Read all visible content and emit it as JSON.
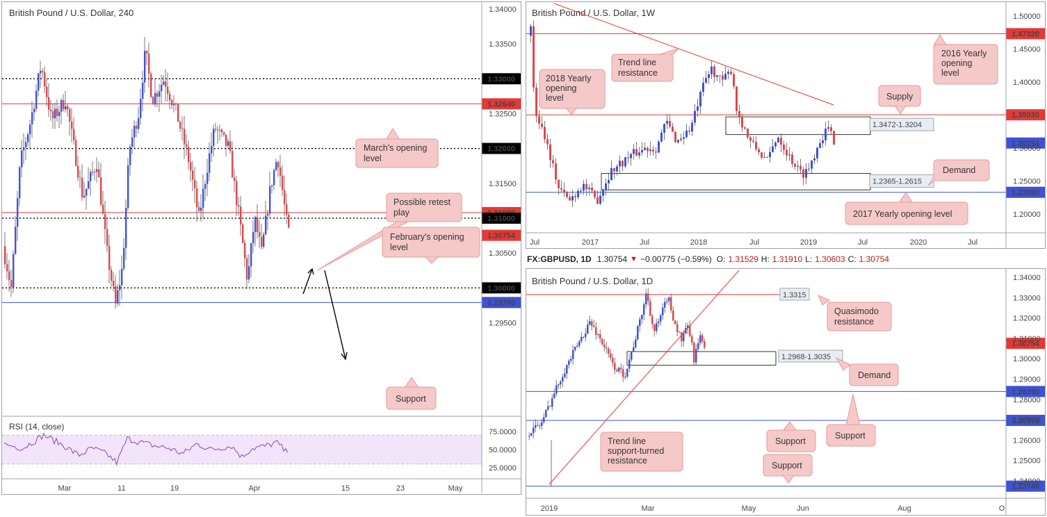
{
  "panels": {
    "h4": {
      "title": "British Pound / U.S. Dollar, 240",
      "rsi_label": "RSI (14, close)",
      "yaxis_ticks": [
        "1.34000",
        "1.33500",
        "1.32500",
        "1.31500",
        "1.30500",
        "1.29500"
      ],
      "rsi_ticks": [
        "75.0000",
        "50.0000",
        "25.0000"
      ],
      "xaxis_ticks": [
        "Mar",
        "11",
        "19",
        "Apr",
        "15",
        "23",
        "May"
      ],
      "levels": [
        {
          "label": "1.33000",
          "price": 1.33,
          "style": "dotted",
          "badge": "black"
        },
        {
          "label": "1.32640",
          "price": 1.3264,
          "style": "red",
          "badge": "red"
        },
        {
          "label": "1.32000",
          "price": 1.32,
          "style": "dotted",
          "badge": "black"
        },
        {
          "label": "1.31080",
          "price": 1.3108,
          "style": "red",
          "badge": "red"
        },
        {
          "label": "1.31000",
          "price": 1.31,
          "style": "dotted",
          "badge": "black"
        },
        {
          "label": "1.30754",
          "price": 1.30754,
          "style": "none",
          "badge": "red"
        },
        {
          "label": "1.30000",
          "price": 1.3,
          "style": "dotted",
          "badge": "black"
        },
        {
          "label": "1.29790",
          "price": 1.2979,
          "style": "blue",
          "badge": "blue"
        }
      ],
      "callouts": {
        "march": "March's opening level",
        "possible": "Possible retest play",
        "february": "February's opening level",
        "support": "Support"
      }
    },
    "weekly": {
      "title": "British Pound / U.S. Dollar, 1W",
      "yaxis_ticks": [
        "1.50000",
        "1.45000",
        "1.40000",
        "1.30000",
        "1.25000",
        "1.20000"
      ],
      "xaxis_ticks": [
        "Jul",
        "2017",
        "Jul",
        "2018",
        "Jul",
        "2019",
        "Jul",
        "2020",
        "Jul"
      ],
      "levels": [
        {
          "label": "1.47320",
          "style": "red",
          "badge": "red"
        },
        {
          "label": "1.35030",
          "style": "red",
          "badge": "red"
        },
        {
          "label": "1.30754",
          "style": "none",
          "badge": "blue"
        },
        {
          "label": "1.23290",
          "style": "blue",
          "badge": "blue"
        }
      ],
      "zones": {
        "supply": "1.3472-1.3204",
        "demand": "1.2365-1.2615"
      },
      "callouts": {
        "trend": "Trend line resistance",
        "y2018": "2018 Yearly opening level",
        "y2016": "2016 Yearly opening level",
        "supply": "Supply",
        "demand": "Demand",
        "y2017": "2017 Yearly opening level"
      }
    },
    "daily": {
      "header": {
        "symbol": "FX:GBPUSD, 1D",
        "last": "1.30754",
        "change": "−0.00775 (−0.59%)",
        "o_label": "O:",
        "o": "1.31529",
        "h_label": "H:",
        "h": "1.31910",
        "l_label": "L:",
        "l": "1.30603",
        "c_label": "C:",
        "c": "1.30754"
      },
      "title": "British Pound / U.S. Dollar, 1D",
      "yaxis_ticks": [
        "1.34000",
        "1.33000",
        "1.32000",
        "1.31000",
        "1.30000",
        "1.29000",
        "1.28000",
        "1.27000",
        "1.26000",
        "1.25000",
        "1.24000"
      ],
      "xaxis_ticks": [
        "2019",
        "Mar",
        "May",
        "Jun",
        "Aug",
        "O"
      ],
      "levels": [
        {
          "label": "1.30754",
          "style": "none",
          "badge": "red"
        },
        {
          "label": "1.28390",
          "style": "blue",
          "badge": "blue"
        },
        {
          "label": "1.26970",
          "style": "blue",
          "badge": "blue"
        },
        {
          "label": "1.23740",
          "style": "blue",
          "badge": "blue"
        }
      ],
      "zones": {
        "quasimodo": "1.3315",
        "demand": "1.2968-1.3035"
      },
      "callouts": {
        "quasimodo": "Quasimodo resistance",
        "demand": "Demand",
        "support1": "Support",
        "support2": "Support",
        "support3": "Support",
        "trend": "Trend line support-turned resistance"
      }
    }
  },
  "colors": {
    "up": "#3f51d8",
    "down": "#e0464b",
    "level_red": "#e53935",
    "level_blue": "#3d52d5",
    "callout_bg": "#f6c9c9",
    "callout_border": "#e59a9a",
    "rsi_line": "#8e44ad",
    "rsi_band": "#f1e4fb"
  }
}
